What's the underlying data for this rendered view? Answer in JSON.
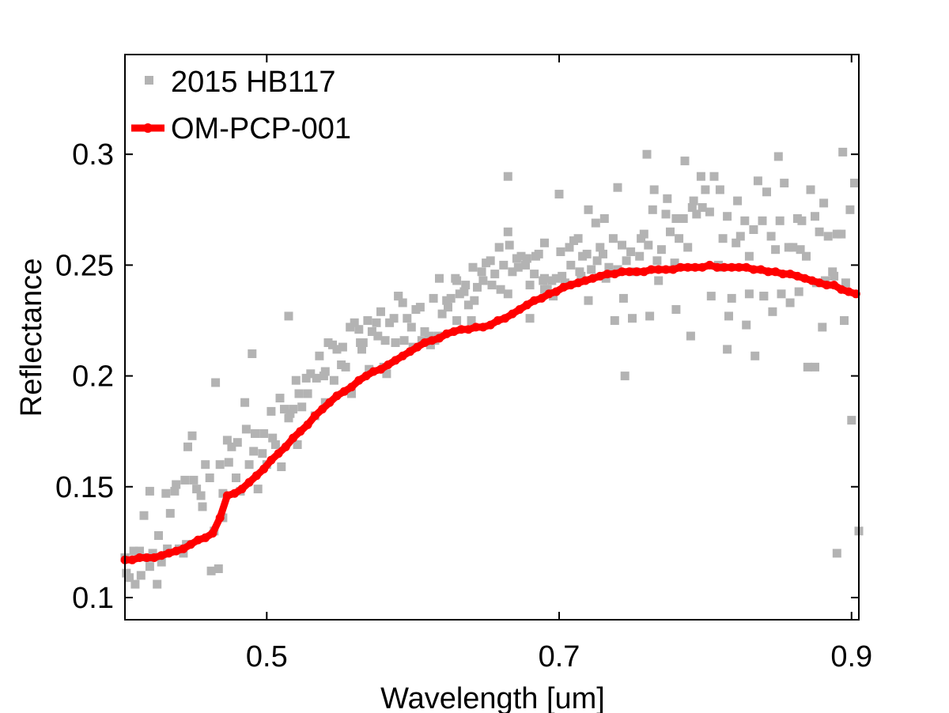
{
  "chart_data": {
    "type": "scatter",
    "xlabel": "Wavelength [um]",
    "ylabel": "Reflectance",
    "xlim": [
      0.403,
      0.905
    ],
    "ylim": [
      0.09,
      0.345
    ],
    "xticks": [
      0.5,
      0.7,
      0.9
    ],
    "xtick_labels": [
      "0.5",
      "0.7",
      "0.9"
    ],
    "yticks": [
      0.1,
      0.15,
      0.2,
      0.25,
      0.3
    ],
    "ytick_labels": [
      "0.1",
      "0.15",
      "0.2",
      "0.25",
      "0.3"
    ],
    "grid": false,
    "legend_position": "top-left",
    "series": [
      {
        "name": "2015 HB117",
        "style": "scatter",
        "marker": "square",
        "color": "#b3b3b3",
        "x": [
          0.403,
          0.406,
          0.41,
          0.413,
          0.416,
          0.419,
          0.422,
          0.425,
          0.428,
          0.431,
          0.434,
          0.437,
          0.44,
          0.443,
          0.446,
          0.449,
          0.452,
          0.455,
          0.458,
          0.461,
          0.464,
          0.467,
          0.47,
          0.473,
          0.476,
          0.479,
          0.482,
          0.485,
          0.488,
          0.491,
          0.494,
          0.497,
          0.5,
          0.503,
          0.506,
          0.509,
          0.512,
          0.515,
          0.518,
          0.521,
          0.524,
          0.527,
          0.53,
          0.533,
          0.536,
          0.539,
          0.542,
          0.545,
          0.548,
          0.551,
          0.554,
          0.557,
          0.56,
          0.563,
          0.566,
          0.569,
          0.572,
          0.575,
          0.578,
          0.581,
          0.584,
          0.587,
          0.59,
          0.593,
          0.596,
          0.599,
          0.602,
          0.605,
          0.608,
          0.611,
          0.614,
          0.617,
          0.62,
          0.623,
          0.626,
          0.629,
          0.632,
          0.635,
          0.638,
          0.641,
          0.644,
          0.647,
          0.65,
          0.653,
          0.656,
          0.659,
          0.662,
          0.665,
          0.668,
          0.671,
          0.674,
          0.677,
          0.68,
          0.683,
          0.686,
          0.689,
          0.692,
          0.695,
          0.698,
          0.701,
          0.704,
          0.707,
          0.71,
          0.713,
          0.716,
          0.719,
          0.722,
          0.725,
          0.728,
          0.731,
          0.734,
          0.737,
          0.74,
          0.743,
          0.746,
          0.749,
          0.752,
          0.755,
          0.758,
          0.761,
          0.764,
          0.767,
          0.77,
          0.773,
          0.776,
          0.779,
          0.782,
          0.785,
          0.788,
          0.791,
          0.794,
          0.797,
          0.8,
          0.803,
          0.806,
          0.809,
          0.812,
          0.815,
          0.818,
          0.821,
          0.824,
          0.827,
          0.83,
          0.833,
          0.836,
          0.839,
          0.842,
          0.845,
          0.848,
          0.851,
          0.854,
          0.857,
          0.86,
          0.863,
          0.866,
          0.869,
          0.872,
          0.875,
          0.878,
          0.881,
          0.884,
          0.887,
          0.89,
          0.893,
          0.896,
          0.899,
          0.902,
          0.905,
          0.404,
          0.409,
          0.414,
          0.42,
          0.426,
          0.432,
          0.438,
          0.444,
          0.45,
          0.456,
          0.462,
          0.468,
          0.474,
          0.48,
          0.486,
          0.492,
          0.498,
          0.504,
          0.51,
          0.516,
          0.522,
          0.528,
          0.534,
          0.54,
          0.546,
          0.552,
          0.558,
          0.564,
          0.57,
          0.576,
          0.582,
          0.588,
          0.594,
          0.6,
          0.606,
          0.612,
          0.618,
          0.624,
          0.63,
          0.636,
          0.642,
          0.648,
          0.654,
          0.66,
          0.666,
          0.672,
          0.678,
          0.684,
          0.69,
          0.696,
          0.702,
          0.708,
          0.714,
          0.72,
          0.726,
          0.732,
          0.738,
          0.744,
          0.75,
          0.756,
          0.762,
          0.768,
          0.774,
          0.78,
          0.786,
          0.792,
          0.798,
          0.804,
          0.81,
          0.816,
          0.822,
          0.828,
          0.834,
          0.84,
          0.846,
          0.852,
          0.858,
          0.864,
          0.87,
          0.876,
          0.882,
          0.888,
          0.894,
          0.9,
          0.42,
          0.445,
          0.465,
          0.49,
          0.515,
          0.54,
          0.565,
          0.59,
          0.615,
          0.64,
          0.665,
          0.69,
          0.715,
          0.74,
          0.765,
          0.79,
          0.815,
          0.84,
          0.865,
          0.89,
          0.47,
          0.52,
          0.58,
          0.63,
          0.68,
          0.73,
          0.78,
          0.83,
          0.88,
          0.745,
          0.76,
          0.81,
          0.85,
          0.875,
          0.895,
          0.69,
          0.7,
          0.665,
          0.72
        ],
        "y": [
          0.118,
          0.109,
          0.106,
          0.121,
          0.137,
          0.118,
          0.12,
          0.106,
          0.116,
          0.147,
          0.138,
          0.148,
          0.122,
          0.12,
          0.168,
          0.173,
          0.149,
          0.146,
          0.16,
          0.154,
          0.13,
          0.113,
          0.147,
          0.171,
          0.168,
          0.154,
          0.148,
          0.188,
          0.16,
          0.166,
          0.149,
          0.165,
          0.16,
          0.184,
          0.169,
          0.19,
          0.185,
          0.181,
          0.185,
          0.169,
          0.186,
          0.199,
          0.201,
          0.182,
          0.209,
          0.2,
          0.215,
          0.214,
          0.212,
          0.205,
          0.204,
          0.222,
          0.224,
          0.221,
          0.215,
          0.225,
          0.22,
          0.224,
          0.229,
          0.216,
          0.224,
          0.226,
          0.236,
          0.233,
          0.226,
          0.222,
          0.23,
          0.231,
          0.22,
          0.218,
          0.235,
          0.218,
          0.228,
          0.234,
          0.235,
          0.244,
          0.237,
          0.238,
          0.232,
          0.249,
          0.24,
          0.247,
          0.251,
          0.252,
          0.246,
          0.258,
          0.25,
          0.237,
          0.247,
          0.253,
          0.254,
          0.25,
          0.241,
          0.246,
          0.255,
          0.243,
          0.239,
          0.243,
          0.244,
          0.256,
          0.242,
          0.258,
          0.261,
          0.262,
          0.254,
          0.255,
          0.248,
          0.269,
          0.258,
          0.271,
          0.249,
          0.262,
          0.248,
          0.259,
          0.252,
          0.256,
          0.247,
          0.254,
          0.264,
          0.259,
          0.275,
          0.252,
          0.257,
          0.273,
          0.265,
          0.251,
          0.262,
          0.271,
          0.258,
          0.276,
          0.273,
          0.29,
          0.284,
          0.274,
          0.29,
          0.25,
          0.262,
          0.272,
          0.235,
          0.26,
          0.263,
          0.27,
          0.237,
          0.266,
          0.288,
          0.27,
          0.283,
          0.263,
          0.257,
          0.27,
          0.287,
          0.258,
          0.258,
          0.271,
          0.27,
          0.254,
          0.284,
          0.272,
          0.265,
          0.278,
          0.263,
          0.247,
          0.264,
          0.264,
          0.242,
          0.275,
          0.287,
          0.13,
          0.111,
          0.121,
          0.11,
          0.114,
          0.128,
          0.122,
          0.151,
          0.153,
          0.153,
          0.141,
          0.112,
          0.16,
          0.161,
          0.17,
          0.176,
          0.174,
          0.174,
          0.172,
          0.159,
          0.183,
          0.192,
          0.192,
          0.199,
          0.188,
          0.198,
          0.213,
          0.192,
          0.215,
          0.203,
          0.218,
          0.201,
          0.215,
          0.216,
          0.213,
          0.216,
          0.214,
          0.244,
          0.231,
          0.243,
          0.241,
          0.234,
          0.243,
          0.241,
          0.239,
          0.259,
          0.249,
          0.253,
          0.254,
          0.239,
          0.236,
          0.245,
          0.25,
          0.247,
          0.234,
          0.252,
          0.244,
          0.225,
          0.235,
          0.226,
          0.262,
          0.227,
          0.243,
          0.28,
          0.271,
          0.297,
          0.279,
          0.276,
          0.236,
          0.249,
          0.227,
          0.279,
          0.223,
          0.209,
          0.236,
          0.229,
          0.237,
          0.233,
          0.238,
          0.204,
          0.242,
          0.243,
          0.245,
          0.301,
          0.18,
          0.148,
          0.124,
          0.197,
          0.21,
          0.227,
          0.202,
          0.212,
          0.236,
          0.216,
          0.225,
          0.29,
          0.244,
          0.245,
          0.285,
          0.284,
          0.218,
          0.212,
          0.236,
          0.257,
          0.12,
          0.136,
          0.198,
          0.204,
          0.225,
          0.226,
          0.255,
          0.23,
          0.254,
          0.222,
          0.2,
          0.3,
          0.284,
          0.299,
          0.204,
          0.225,
          0.26,
          0.282,
          0.265,
          0.275
        ],
        "note": ""
      },
      {
        "name": "OM-PCP-001",
        "style": "line",
        "marker": "circle",
        "color": "#ff0000",
        "x": [
          0.403,
          0.408,
          0.413,
          0.418,
          0.423,
          0.428,
          0.433,
          0.438,
          0.443,
          0.448,
          0.453,
          0.458,
          0.463,
          0.468,
          0.473,
          0.478,
          0.483,
          0.488,
          0.493,
          0.498,
          0.503,
          0.508,
          0.513,
          0.518,
          0.523,
          0.528,
          0.533,
          0.538,
          0.543,
          0.548,
          0.553,
          0.558,
          0.563,
          0.568,
          0.573,
          0.578,
          0.583,
          0.588,
          0.593,
          0.598,
          0.603,
          0.608,
          0.613,
          0.618,
          0.623,
          0.628,
          0.633,
          0.638,
          0.643,
          0.648,
          0.653,
          0.658,
          0.663,
          0.668,
          0.673,
          0.678,
          0.683,
          0.688,
          0.693,
          0.698,
          0.703,
          0.708,
          0.713,
          0.718,
          0.723,
          0.728,
          0.733,
          0.738,
          0.743,
          0.748,
          0.753,
          0.758,
          0.763,
          0.768,
          0.773,
          0.778,
          0.783,
          0.788,
          0.793,
          0.798,
          0.803,
          0.808,
          0.813,
          0.818,
          0.823,
          0.828,
          0.833,
          0.838,
          0.843,
          0.848,
          0.853,
          0.858,
          0.863,
          0.868,
          0.873,
          0.878,
          0.883,
          0.888,
          0.893,
          0.898,
          0.903
        ],
        "y": [
          0.117,
          0.117,
          0.118,
          0.118,
          0.118,
          0.119,
          0.12,
          0.121,
          0.122,
          0.124,
          0.126,
          0.127,
          0.129,
          0.136,
          0.146,
          0.147,
          0.149,
          0.152,
          0.155,
          0.158,
          0.162,
          0.165,
          0.168,
          0.172,
          0.175,
          0.178,
          0.182,
          0.185,
          0.188,
          0.191,
          0.193,
          0.195,
          0.198,
          0.2,
          0.202,
          0.203,
          0.205,
          0.207,
          0.209,
          0.211,
          0.213,
          0.215,
          0.216,
          0.217,
          0.219,
          0.22,
          0.221,
          0.221,
          0.222,
          0.222,
          0.223,
          0.225,
          0.226,
          0.228,
          0.23,
          0.232,
          0.234,
          0.235,
          0.237,
          0.238,
          0.24,
          0.241,
          0.242,
          0.243,
          0.244,
          0.245,
          0.246,
          0.246,
          0.247,
          0.247,
          0.247,
          0.247,
          0.248,
          0.248,
          0.248,
          0.248,
          0.249,
          0.249,
          0.249,
          0.249,
          0.25,
          0.249,
          0.249,
          0.249,
          0.249,
          0.249,
          0.248,
          0.248,
          0.247,
          0.247,
          0.246,
          0.246,
          0.245,
          0.244,
          0.243,
          0.242,
          0.241,
          0.241,
          0.239,
          0.238,
          0.237
        ]
      }
    ]
  }
}
